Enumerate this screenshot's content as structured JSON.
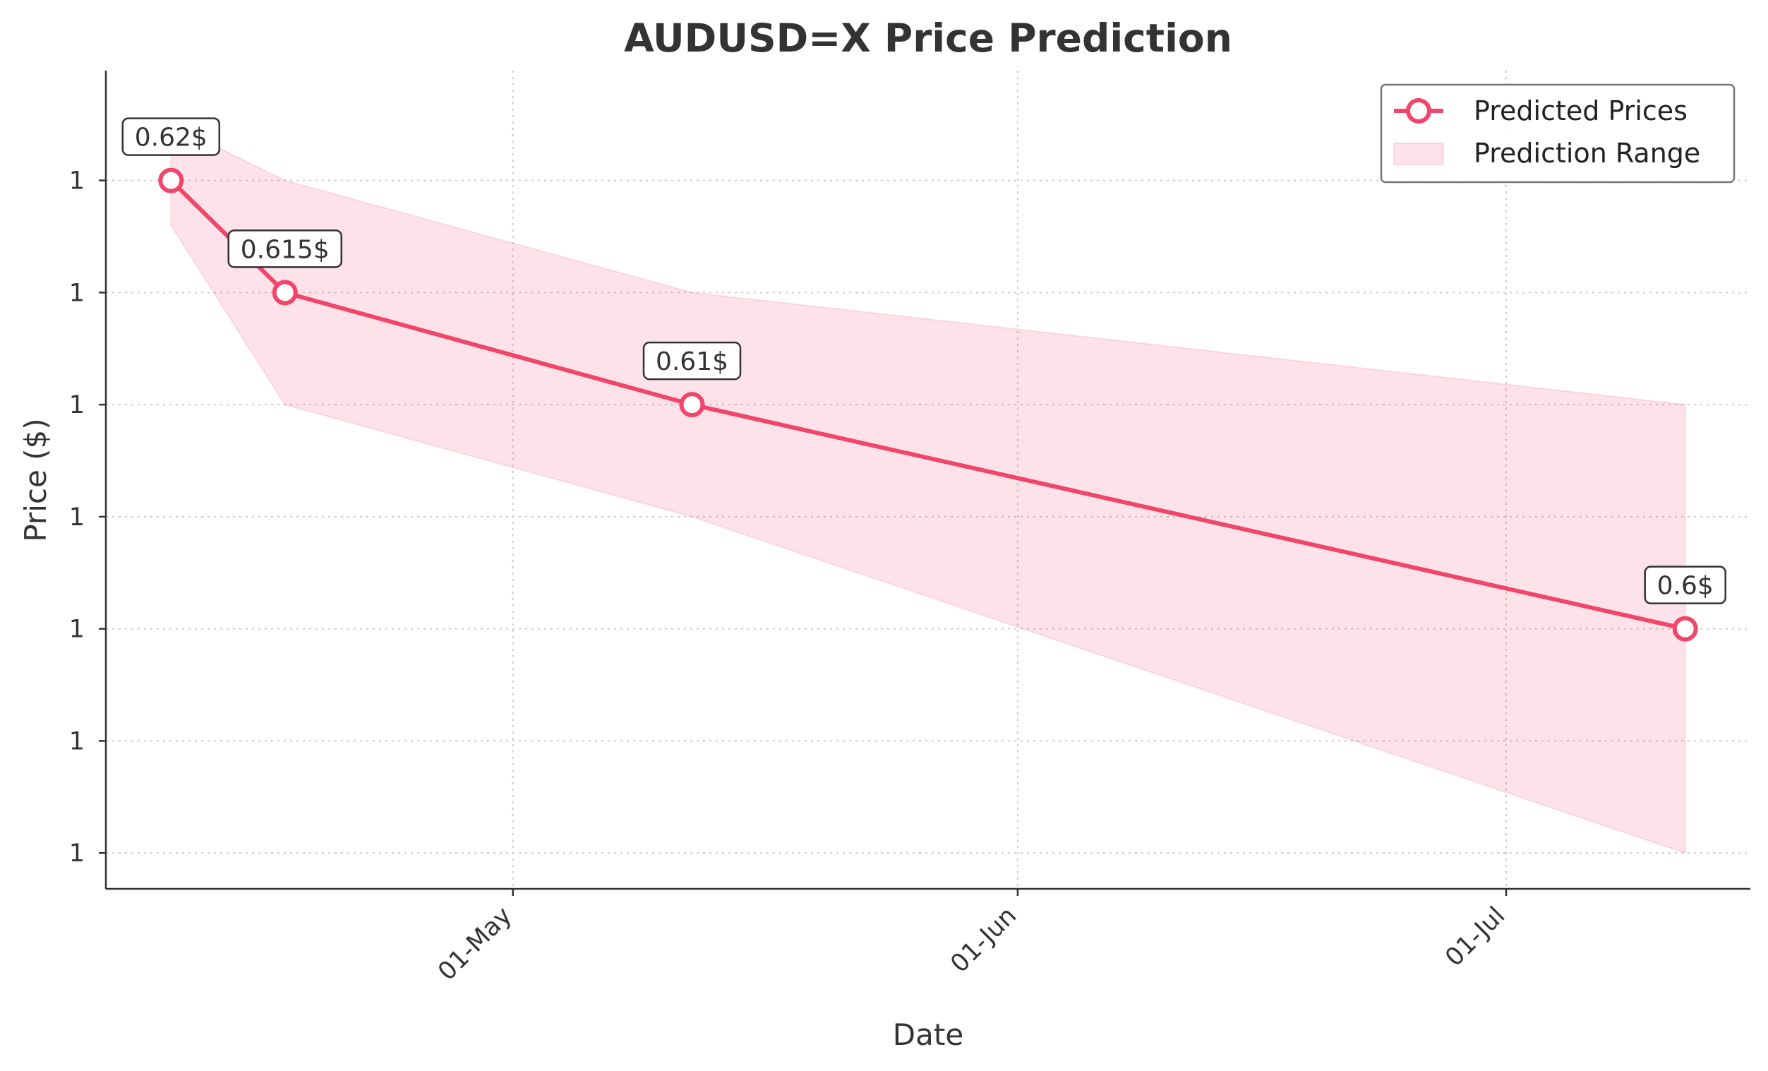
{
  "chart_data": {
    "type": "line",
    "title": "AUDUSD=X Price Prediction",
    "xlabel": "Date",
    "ylabel": "Price ($)",
    "x_ticks": [
      {
        "date": "2024-05-01",
        "label": "01-May"
      },
      {
        "date": "2024-06-01",
        "label": "01-Jun"
      },
      {
        "date": "2024-07-01",
        "label": "01-Jul"
      }
    ],
    "y_ticks": [
      {
        "value": 0.62,
        "label": "1"
      },
      {
        "value": 0.615,
        "label": "1"
      },
      {
        "value": 0.61,
        "label": "1"
      },
      {
        "value": 0.605,
        "label": "1"
      },
      {
        "value": 0.6,
        "label": "1"
      },
      {
        "value": 0.595,
        "label": "1"
      },
      {
        "value": 0.59,
        "label": "1"
      }
    ],
    "xlim": [
      "2024-04-06",
      "2024-07-16"
    ],
    "ylim": [
      0.5884,
      0.6249
    ],
    "grid": true,
    "legend_placement": "top-right",
    "series": [
      {
        "name": "Predicted Prices",
        "kind": "line",
        "color": "#f0466a",
        "points": [
          {
            "date": "2024-04-10",
            "value": 0.62,
            "label": "0.62$"
          },
          {
            "date": "2024-04-17",
            "value": 0.615,
            "label": "0.615$"
          },
          {
            "date": "2024-05-12",
            "value": 0.61,
            "label": "0.61$"
          },
          {
            "date": "2024-07-12",
            "value": 0.6,
            "label": "0.6$"
          }
        ]
      },
      {
        "name": "Prediction Range",
        "kind": "band",
        "color": "#f0466a",
        "points": [
          {
            "date": "2024-04-10",
            "upper": 0.6225,
            "lower": 0.618
          },
          {
            "date": "2024-04-17",
            "upper": 0.62,
            "lower": 0.61
          },
          {
            "date": "2024-05-12",
            "upper": 0.615,
            "lower": 0.605
          },
          {
            "date": "2024-07-12",
            "upper": 0.61,
            "lower": 0.59
          }
        ]
      }
    ]
  }
}
